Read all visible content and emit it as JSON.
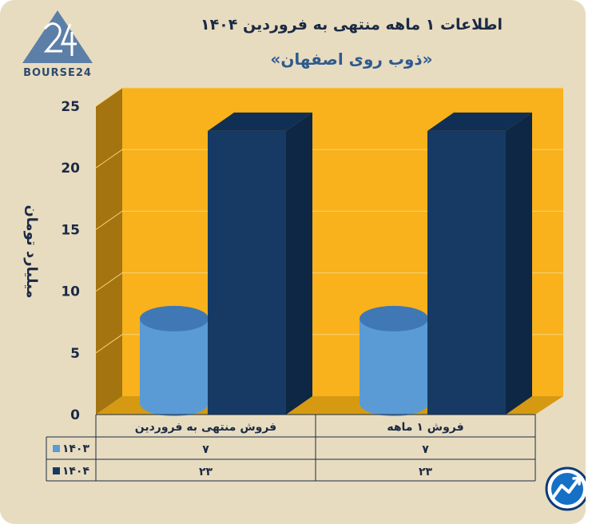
{
  "header": {
    "title": "اطلاعات ۱ ماهه منتهی به فروردین ۱۴۰۴",
    "subtitle": "«ذوب روی اصفهان»"
  },
  "logo": {
    "text": "BOURSE24"
  },
  "colors": {
    "background": "#e8dcc0",
    "plot_back": "#f9b21b",
    "plot_side": "#a37410",
    "plot_floor": "#d59a12",
    "series_1403": "#5b9bd5",
    "series_1404": "#163a63",
    "text": "#1b2a44"
  },
  "chart_data": {
    "type": "bar",
    "categories": [
      "فروش منتهی به  فروردین",
      "فروش ۱  ماهه"
    ],
    "series": [
      {
        "name": "۱۴۰۳",
        "values": [
          7,
          7
        ],
        "labels": [
          "۷",
          "۷"
        ],
        "shape": "cylinder"
      },
      {
        "name": "۱۴۰۴",
        "values": [
          23,
          23
        ],
        "labels": [
          "۲۳",
          "۲۳"
        ],
        "shape": "box"
      }
    ],
    "ylabel": "میلیارد تومان",
    "ylim": [
      0,
      25
    ],
    "yticks": [
      0,
      5,
      10,
      15,
      20,
      25
    ],
    "ytick_labels": [
      "0",
      "5",
      "10",
      "15",
      "20",
      "25"
    ],
    "grid": true,
    "legend_placement": "table-left",
    "data_table": true
  }
}
